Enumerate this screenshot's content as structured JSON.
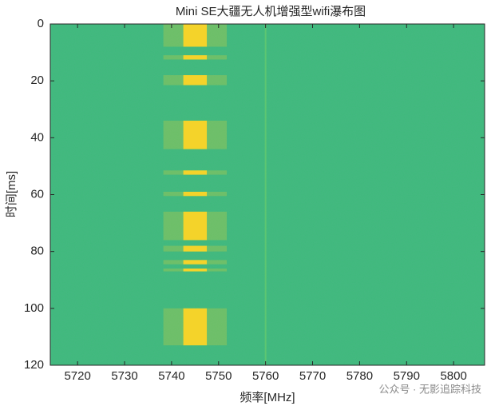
{
  "chart_data": {
    "type": "waterfall",
    "title": "Mini SE大疆无人机增强型wifi瀑布图",
    "xlabel": "频率[MHz]",
    "ylabel": "时间[ms]",
    "annotation": "公众号 · 无影追踪科技",
    "xlim": [
      5714.2,
      5806.6
    ],
    "ylim": [
      0,
      120
    ],
    "y_reversed": true,
    "xticks": [
      5720,
      5730,
      5740,
      5750,
      5760,
      5770,
      5780,
      5790,
      5800
    ],
    "yticks": [
      0,
      20,
      40,
      60,
      80,
      100,
      120
    ],
    "background_color": "#3dba7a",
    "burst_color": "#f4d32a",
    "burst_band": [
      5742.5,
      5747.5
    ],
    "bursts": [
      [
        0,
        8
      ],
      [
        11,
        12.5
      ],
      [
        18,
        21.5
      ],
      [
        34,
        44
      ],
      [
        51.5,
        53
      ],
      [
        59,
        60.5
      ],
      [
        66,
        76
      ],
      [
        78,
        80
      ],
      [
        83,
        84.5
      ],
      [
        86,
        87
      ],
      [
        100,
        113
      ]
    ],
    "markers_x": [
      5760
    ]
  }
}
